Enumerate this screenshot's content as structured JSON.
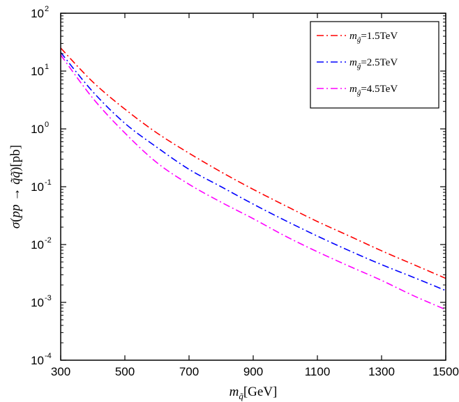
{
  "chart_data": {
    "type": "line",
    "title": "",
    "xlabel": "m_q̃[GeV]",
    "ylabel": "σ(pp → q̃q̃)[pb]",
    "xlim": [
      300,
      1500
    ],
    "ylim": [
      0.0001,
      100
    ],
    "yscale": "log",
    "grid": false,
    "legend_position": "top-right",
    "x_ticks": [
      300,
      500,
      700,
      900,
      1100,
      1300,
      1500
    ],
    "y_ticks": [
      {
        "base": "10",
        "exp": "-4",
        "value": 0.0001
      },
      {
        "base": "10",
        "exp": "-3",
        "value": 0.001
      },
      {
        "base": "10",
        "exp": "-2",
        "value": 0.01
      },
      {
        "base": "10",
        "exp": "-1",
        "value": 0.1
      },
      {
        "base": "10",
        "exp": "0",
        "value": 1
      },
      {
        "base": "10",
        "exp": "1",
        "value": 10
      },
      {
        "base": "10",
        "exp": "2",
        "value": 100
      }
    ],
    "x": [
      300,
      400,
      500,
      600,
      700,
      800,
      900,
      1000,
      1100,
      1200,
      1300,
      1400,
      1500
    ],
    "series": [
      {
        "name": "m_g̃=1.5TeV",
        "name_subscript": "g̃",
        "name_value": "=1.5TeV",
        "color": "#ff0000",
        "values": [
          25,
          6.5,
          2.2,
          0.85,
          0.38,
          0.18,
          0.09,
          0.047,
          0.025,
          0.014,
          0.0078,
          0.0045,
          0.0026
        ]
      },
      {
        "name": "m_g̃=2.5TeV",
        "name_subscript": "g̃",
        "name_value": "=2.5TeV",
        "color": "#0000ff",
        "values": [
          21,
          4.4,
          1.25,
          0.48,
          0.2,
          0.1,
          0.05,
          0.026,
          0.014,
          0.0078,
          0.0045,
          0.0027,
          0.0016
        ]
      },
      {
        "name": "m_g̃=4.5TeV",
        "name_subscript": "g̃",
        "name_value": "=4.5TeV",
        "color": "#ff00ff",
        "values": [
          19,
          3.4,
          0.85,
          0.26,
          0.11,
          0.054,
          0.028,
          0.014,
          0.0075,
          0.0042,
          0.0024,
          0.0013,
          0.00075
        ]
      }
    ]
  },
  "ylabel_parts": {
    "sigma": "σ",
    "paren_open": "(",
    "pp": "pp",
    "arrow": " → ",
    "qq": "q̃q̃",
    "rest": ")[pb]"
  },
  "xlabel_parts": {
    "m": "m",
    "sub": "q̃",
    "rest": "[GeV]"
  },
  "legend_m": "m"
}
